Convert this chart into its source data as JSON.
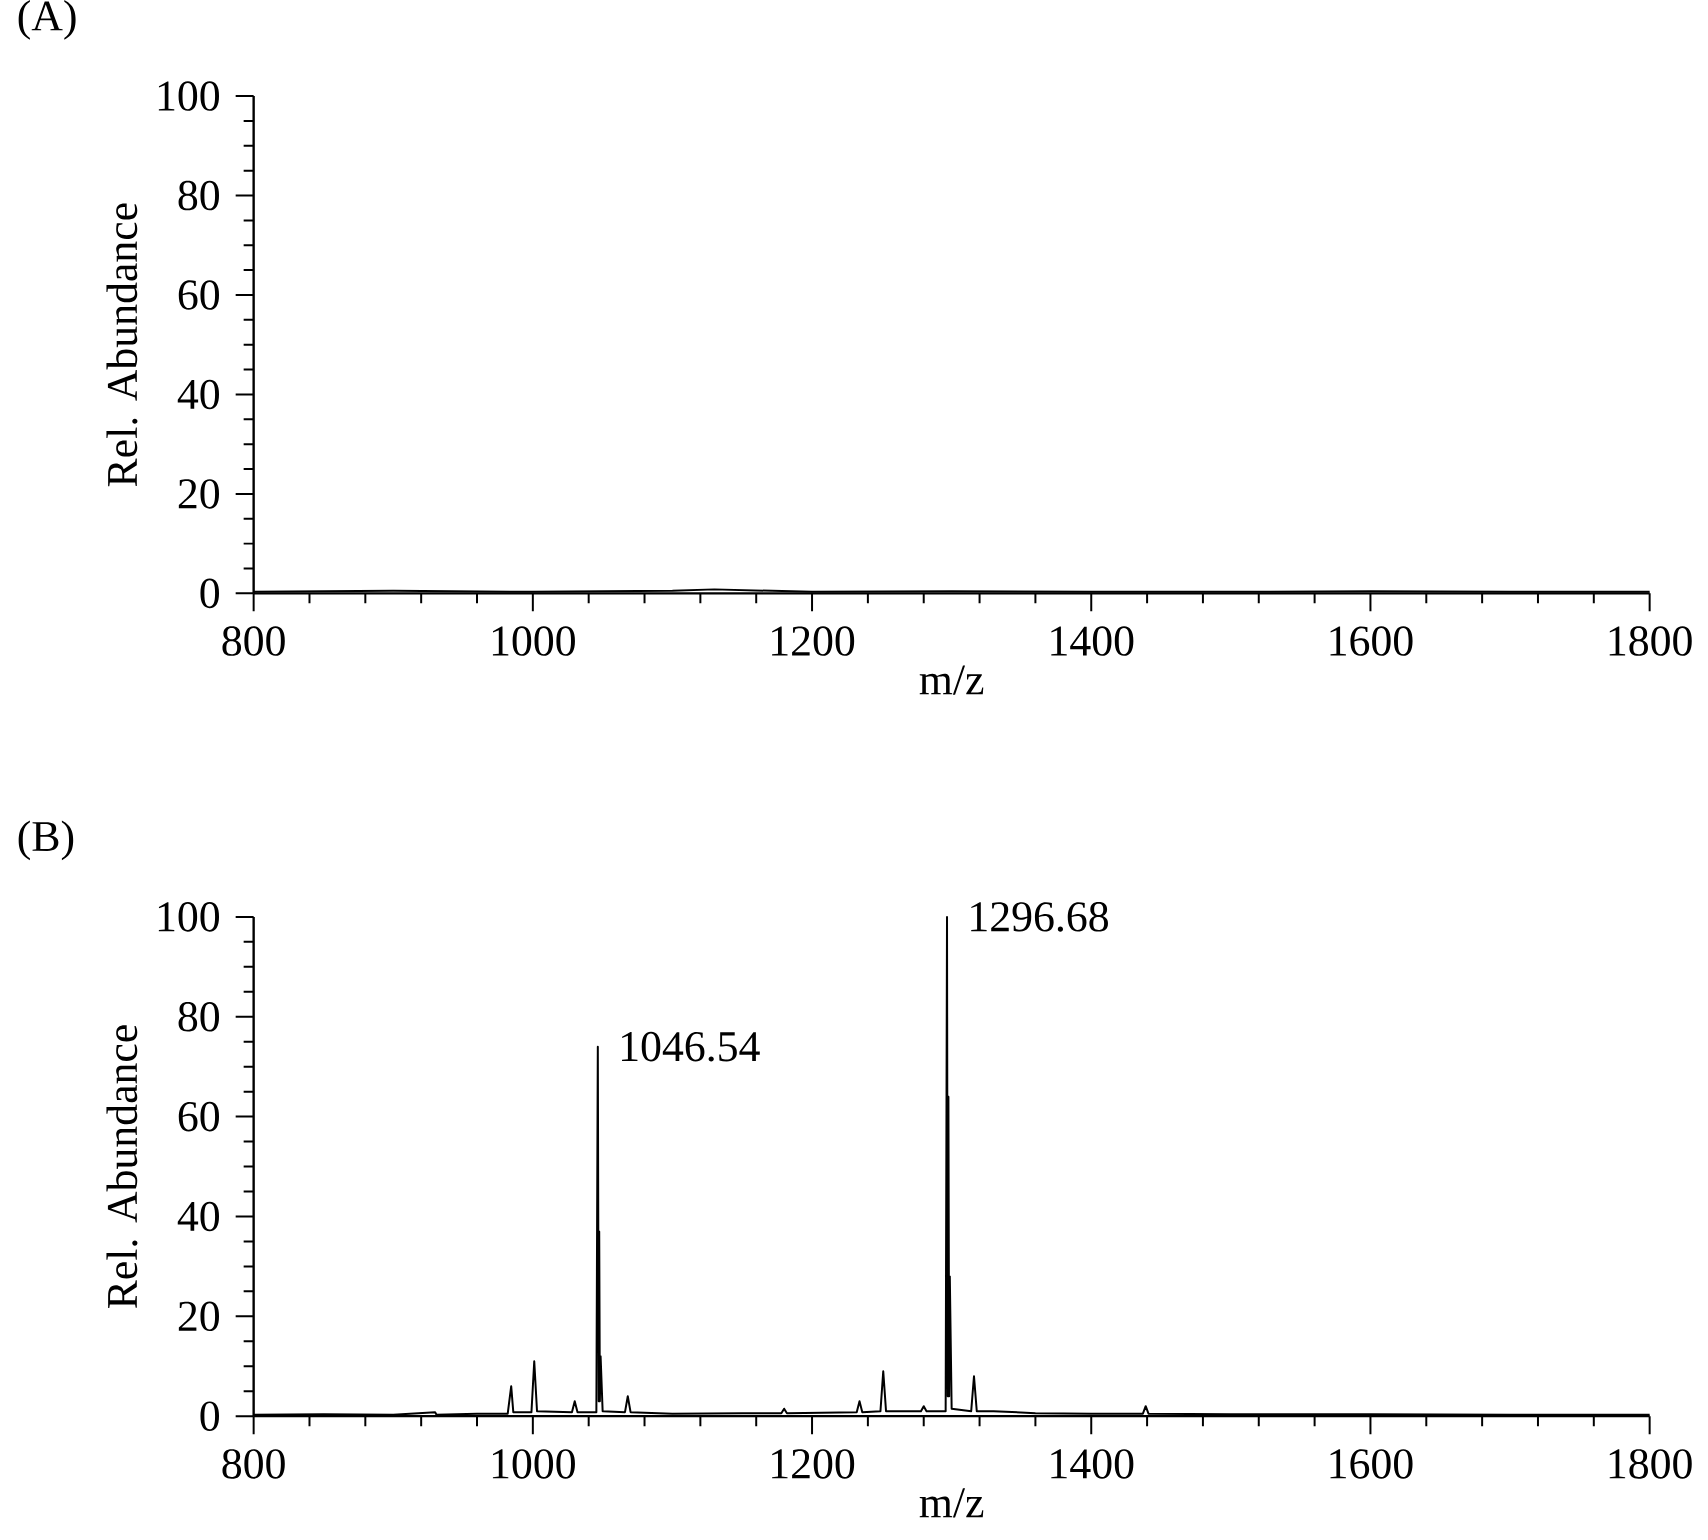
{
  "chart_data": [
    {
      "type": "line",
      "title": "(A)",
      "xlabel": "m/z",
      "ylabel": "Rel. Abundance",
      "xlim": [
        800,
        1800
      ],
      "xticks": [
        800,
        1000,
        1200,
        1400,
        1600,
        1800
      ],
      "ylim": [
        0,
        100
      ],
      "yticks": [
        0,
        20,
        40,
        60,
        80,
        100
      ],
      "series": [
        {
          "color": "#000000",
          "x": [
            800,
            900,
            1000,
            1100,
            1130,
            1200,
            1300,
            1400,
            1500,
            1600,
            1700,
            1800
          ],
          "values": [
            0.3,
            0.5,
            0.3,
            0.5,
            0.8,
            0.3,
            0.4,
            0.3,
            0.3,
            0.4,
            0.3,
            0.3
          ]
        }
      ]
    },
    {
      "type": "line",
      "title": "(B)",
      "xlabel": "m/z",
      "ylabel": "Rel. Abundance",
      "xlim": [
        800,
        1800
      ],
      "xticks": [
        800,
        1000,
        1200,
        1400,
        1600,
        1800
      ],
      "ylim": [
        0,
        100
      ],
      "yticks": [
        0,
        20,
        40,
        60,
        80,
        100
      ],
      "series": [
        {
          "color": "#000000",
          "x": [
            800,
            850,
            900,
            930,
            931,
            960,
            982,
            984.5,
            986,
            999,
            1001,
            1003,
            1028,
            1030,
            1032,
            1045.5,
            1046.54,
            1047.2,
            1047.54,
            1048,
            1048.54,
            1050,
            1066,
            1068,
            1070,
            1100,
            1150,
            1178,
            1180,
            1182,
            1232,
            1234,
            1236,
            1249,
            1251,
            1253,
            1278,
            1280,
            1282,
            1295.7,
            1296.68,
            1297.2,
            1297.68,
            1298.2,
            1298.68,
            1300,
            1314,
            1316,
            1318,
            1330,
            1360,
            1400,
            1437,
            1439,
            1441,
            1500,
            1600,
            1700,
            1800
          ],
          "values": [
            0.3,
            0.4,
            0.3,
            0.8,
            0.3,
            0.5,
            0.5,
            6,
            0.8,
            0.8,
            11,
            1,
            0.8,
            3,
            0.8,
            0.8,
            74,
            3,
            37,
            3,
            12,
            1,
            0.8,
            4,
            0.8,
            0.5,
            0.6,
            0.6,
            1.5,
            0.6,
            0.8,
            3,
            0.8,
            1,
            9,
            1,
            1,
            2,
            1,
            1,
            100,
            4,
            64,
            4,
            28,
            1.5,
            1,
            8,
            1,
            1,
            0.6,
            0.5,
            0.5,
            2,
            0.5,
            0.4,
            0.4,
            0.3,
            0.3
          ]
        }
      ],
      "annotations": [
        {
          "text": "1046.54",
          "x": 1046.54,
          "y": 74
        },
        {
          "text": "1296.68",
          "x": 1296.68,
          "y": 100
        }
      ]
    }
  ]
}
